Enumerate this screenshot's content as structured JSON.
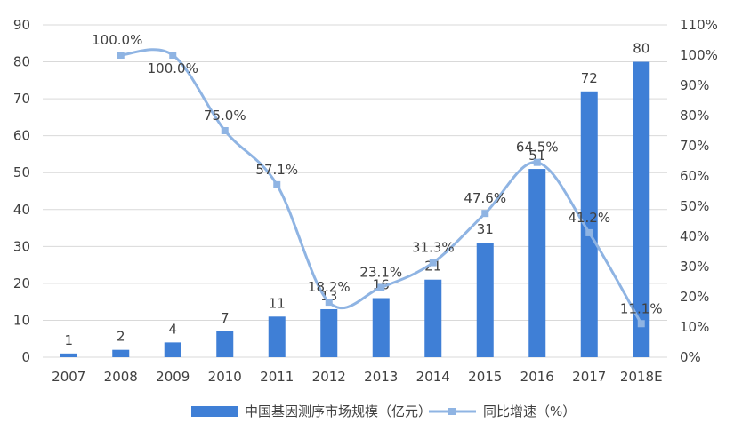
{
  "chart_data": {
    "type": "bar+line",
    "categories": [
      "2007",
      "2008",
      "2009",
      "2010",
      "2011",
      "2012",
      "2013",
      "2014",
      "2015",
      "2016",
      "2017",
      "2018E"
    ],
    "series": [
      {
        "name": "中国基因测序市场规模（亿元）",
        "type": "bar",
        "axis": "left",
        "values": [
          1,
          2,
          4,
          7,
          11,
          13,
          16,
          21,
          31,
          51,
          72,
          80
        ],
        "labels": [
          "1",
          "2",
          "4",
          "7",
          "11",
          "13",
          "16",
          "21",
          "31",
          "51",
          "72",
          "80"
        ]
      },
      {
        "name": "同比增速（%）",
        "type": "line",
        "axis": "right",
        "values": [
          null,
          100.0,
          100.0,
          75.0,
          57.1,
          18.2,
          23.1,
          31.3,
          47.6,
          64.5,
          41.2,
          11.1
        ],
        "labels": [
          "",
          "100.0%",
          "100.0%",
          "75.0%",
          "57.1%",
          "18.2%",
          "23.1%",
          "31.3%",
          "47.6%",
          "64.5%",
          "41.2%",
          "11.1%"
        ]
      }
    ],
    "y_left": {
      "min": 0,
      "max": 90,
      "step": 10,
      "ticks": [
        "0",
        "10",
        "20",
        "30",
        "40",
        "50",
        "60",
        "70",
        "80",
        "90"
      ]
    },
    "y_right": {
      "min": 0,
      "max": 110,
      "step": 10,
      "ticks": [
        "0%",
        "10%",
        "20%",
        "30%",
        "40%",
        "50%",
        "60%",
        "70%",
        "80%",
        "90%",
        "100%",
        "110%"
      ]
    },
    "grid": true,
    "legend_position": "bottom",
    "colors": {
      "bar": "#3f7fd6",
      "line": "#8fb4e3",
      "grid": "#d9d9d9"
    }
  }
}
